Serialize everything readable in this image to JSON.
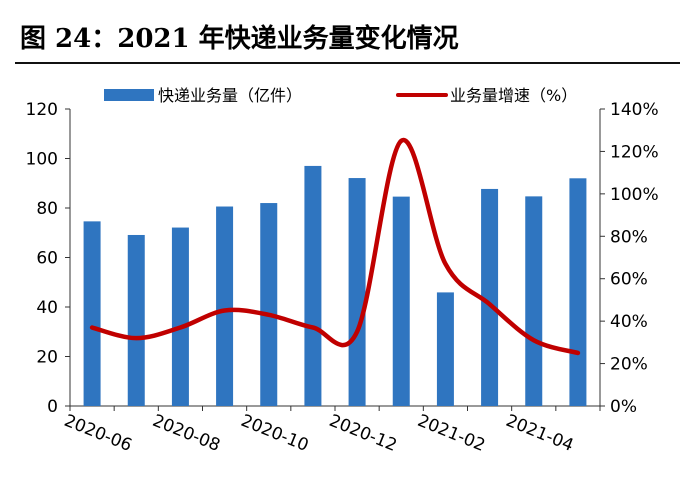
{
  "figure": {
    "title": "图 24：2021 年快递业务量变化情况"
  },
  "colors": {
    "bar": "#2f75c0",
    "line": "#c00000",
    "axis": "#333333"
  },
  "chart_data": {
    "type": "bar",
    "categories": [
      "2020-06",
      "2020-07",
      "2020-08",
      "2020-09",
      "2020-10",
      "2020-11",
      "2020-12",
      "2021-01",
      "2021-02",
      "2021-03",
      "2021-04",
      "2021-05"
    ],
    "x_tick_labels": [
      "2020-06",
      "2020-08",
      "2020-10",
      "2020-12",
      "2021-02",
      "2021-04"
    ],
    "series": [
      {
        "name": "快递业务量（亿件）",
        "type": "bar",
        "axis": "left",
        "values": [
          74.6,
          69.1,
          72.1,
          80.6,
          82.0,
          97.0,
          92.1,
          84.6,
          45.9,
          87.7,
          84.7,
          92.0
        ]
      },
      {
        "name": "业务量增速（%）",
        "type": "line",
        "axis": "right",
        "values": [
          37,
          32,
          37,
          45,
          43,
          37,
          35,
          125,
          67,
          48,
          31,
          25
        ]
      }
    ],
    "y_left": {
      "ylim": [
        0,
        120
      ],
      "ticks": [
        "0",
        "20",
        "40",
        "60",
        "80",
        "100",
        "120"
      ]
    },
    "y_right": {
      "ylim": [
        0,
        140
      ],
      "ticks": [
        "0%",
        "20%",
        "40%",
        "60%",
        "80%",
        "100%",
        "120%",
        "140%"
      ]
    },
    "legend_position": "top",
    "grid": false
  }
}
